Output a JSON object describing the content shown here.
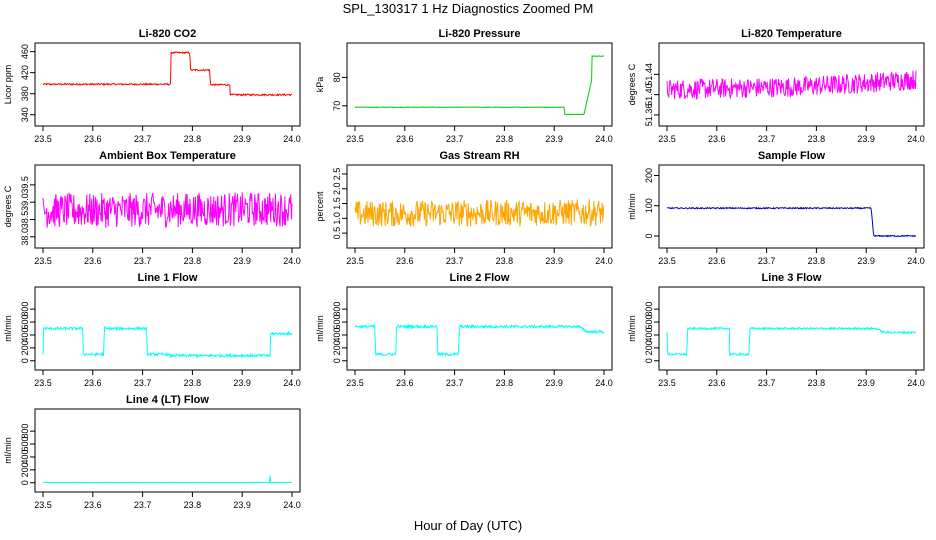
{
  "title": "SPL_130317 1 Hz Diagnostics Zoomed PM",
  "xlabel": "Hour of Day (UTC)",
  "chart_data": [
    {
      "type": "line",
      "title": "Li-820 CO2",
      "ylabel": "Licor ppm",
      "color": "#ff0000",
      "xlim": [
        23.5,
        24.0
      ],
      "ylim": [
        330,
        465
      ],
      "xticks": [
        "23.5",
        "23.6",
        "23.7",
        "23.8",
        "23.9",
        "24.0"
      ],
      "yticks": [
        "340",
        "380",
        "420",
        "460"
      ],
      "series": [
        {
          "x": [
            23.5,
            23.756,
            23.757,
            23.795,
            23.796,
            23.835,
            23.836,
            23.875,
            23.876,
            24.0
          ],
          "y": [
            398,
            398,
            458,
            458,
            425,
            425,
            397,
            397,
            378,
            378
          ]
        }
      ],
      "noise": 1.5
    },
    {
      "type": "line",
      "title": "Li-820 Pressure",
      "ylabel": "kPa",
      "color": "#00cc00",
      "xlim": [
        23.5,
        24.0
      ],
      "ylim": [
        65,
        90
      ],
      "xticks": [
        "23.5",
        "23.6",
        "23.7",
        "23.8",
        "23.9",
        "24.0"
      ],
      "yticks": [
        "70",
        "80"
      ],
      "series": [
        {
          "x": [
            23.5,
            23.92,
            23.921,
            23.96,
            23.975,
            23.976,
            24.0
          ],
          "y": [
            69.5,
            69.5,
            67,
            67,
            79,
            87.5,
            87.5
          ]
        }
      ],
      "noise": 0.1
    },
    {
      "type": "line",
      "title": "Li-820 Temperature",
      "ylabel": "degrees C",
      "color": "#ff00ff",
      "xlim": [
        23.5,
        24.0
      ],
      "ylim": [
        51.35,
        51.49
      ],
      "xticks": [
        "23.5",
        "23.6",
        "23.7",
        "23.8",
        "23.9",
        "24.0"
      ],
      "yticks": [
        "51.36",
        "51.40",
        "51.44"
      ],
      "series": [
        {
          "x": [
            23.5,
            23.75,
            23.85,
            24.0
          ],
          "y": [
            51.41,
            51.415,
            51.42,
            51.43
          ]
        }
      ],
      "noise": 0.02
    },
    {
      "type": "line",
      "title": "Ambient Box Temperature",
      "ylabel": "degrees C",
      "color": "#ff00ff",
      "xlim": [
        23.5,
        24.0
      ],
      "ylim": [
        37.85,
        39.9
      ],
      "xticks": [
        "23.5",
        "23.6",
        "23.7",
        "23.8",
        "23.9",
        "24.0"
      ],
      "yticks": [
        "38.0",
        "38.5",
        "39.0",
        "39.5"
      ],
      "series": [
        {
          "x": [
            23.5,
            24.0
          ],
          "y": [
            38.75,
            38.8
          ]
        }
      ],
      "noise": 0.5
    },
    {
      "type": "line",
      "title": "Gas Stream RH",
      "ylabel": "percent",
      "color": "#ffa500",
      "xlim": [
        23.5,
        24.0
      ],
      "ylim": [
        0.2,
        2.6
      ],
      "xticks": [
        "23.5",
        "23.6",
        "23.7",
        "23.8",
        "23.9",
        "24.0"
      ],
      "yticks": [
        "0.5",
        "1.0",
        "1.5",
        "2.0",
        "2.5"
      ],
      "series": [
        {
          "x": [
            23.5,
            24.0
          ],
          "y": [
            1.15,
            1.2
          ]
        }
      ],
      "noise": 0.45
    },
    {
      "type": "line",
      "title": "Sample Flow",
      "ylabel": "ml/min",
      "color": "#0000cc",
      "xlim": [
        23.5,
        24.0
      ],
      "ylim": [
        -20,
        215
      ],
      "xticks": [
        "23.5",
        "23.6",
        "23.7",
        "23.8",
        "23.9",
        "24.0"
      ],
      "yticks": [
        "0",
        "100",
        "200"
      ],
      "series": [
        {
          "x": [
            23.5,
            23.91,
            23.915,
            24.0
          ],
          "y": [
            92,
            92,
            0,
            0
          ]
        }
      ],
      "noise": 2
    },
    {
      "type": "line",
      "title": "Line 1 Flow",
      "ylabel": "ml/min",
      "color": "#00ffff",
      "xlim": [
        23.5,
        24.0
      ],
      "ylim": [
        -50,
        1050
      ],
      "xticks": [
        "23.5",
        "23.6",
        "23.7",
        "23.8",
        "23.9",
        "24.0"
      ],
      "yticks": [
        "0",
        "200",
        "400",
        "600",
        "800"
      ],
      "series": [
        {
          "x": [
            23.5,
            23.501,
            23.58,
            23.581,
            23.622,
            23.623,
            23.708,
            23.709,
            23.752,
            23.753,
            23.956,
            23.957,
            24.0
          ],
          "y": [
            100,
            500,
            500,
            100,
            100,
            500,
            500,
            100,
            100,
            80,
            80,
            420,
            420
          ]
        }
      ],
      "noise": 20
    },
    {
      "type": "line",
      "title": "Line 2 Flow",
      "ylabel": "ml/min",
      "color": "#00ffff",
      "xlim": [
        23.5,
        24.0
      ],
      "ylim": [
        -50,
        1050
      ],
      "xticks": [
        "23.5",
        "23.6",
        "23.7",
        "23.8",
        "23.9",
        "24.0"
      ],
      "yticks": [
        "0",
        "200",
        "400",
        "600",
        "800"
      ],
      "series": [
        {
          "x": [
            23.5,
            23.54,
            23.541,
            23.582,
            23.583,
            23.665,
            23.666,
            23.708,
            23.709,
            23.95,
            23.965,
            24.0
          ],
          "y": [
            530,
            530,
            100,
            100,
            530,
            530,
            100,
            100,
            530,
            530,
            450,
            450
          ]
        }
      ],
      "noise": 20
    },
    {
      "type": "line",
      "title": "Line 3 Flow",
      "ylabel": "ml/min",
      "color": "#00ffff",
      "xlim": [
        23.5,
        24.0
      ],
      "ylim": [
        -50,
        1050
      ],
      "xticks": [
        "23.5",
        "23.6",
        "23.7",
        "23.8",
        "23.9",
        "24.0"
      ],
      "yticks": [
        "0",
        "200",
        "400",
        "600",
        "800"
      ],
      "series": [
        {
          "x": [
            23.5,
            23.501,
            23.54,
            23.541,
            23.625,
            23.626,
            23.665,
            23.666,
            23.92,
            23.935,
            24.0
          ],
          "y": [
            450,
            100,
            100,
            500,
            500,
            100,
            100,
            500,
            500,
            440,
            440
          ]
        }
      ],
      "noise": 15
    },
    {
      "type": "line",
      "title": "Line 4 (LT) Flow",
      "ylabel": "ml/min",
      "color": "#00ffff",
      "xlim": [
        23.5,
        24.0
      ],
      "ylim": [
        -50,
        1050
      ],
      "xticks": [
        "23.5",
        "23.6",
        "23.7",
        "23.8",
        "23.9",
        "24.0"
      ],
      "yticks": [
        "0",
        "200",
        "400",
        "600",
        "800"
      ],
      "series": [
        {
          "x": [
            23.5,
            23.955,
            23.956,
            23.957,
            24.0
          ],
          "y": [
            5,
            5,
            120,
            5,
            5
          ]
        }
      ],
      "noise": 2
    }
  ]
}
